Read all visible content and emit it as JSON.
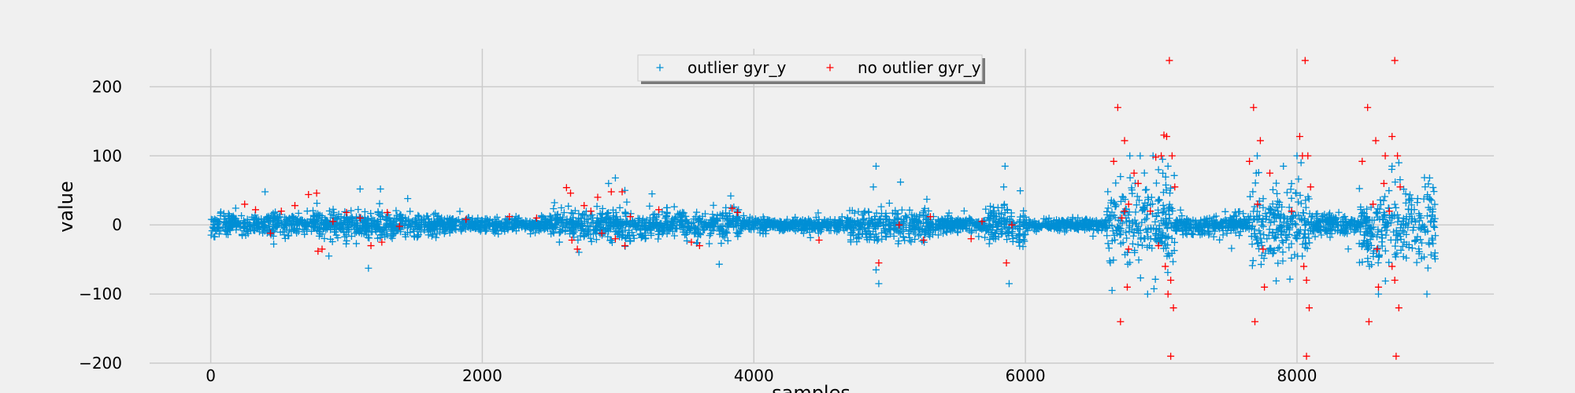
{
  "chart_data": {
    "type": "scatter",
    "marker": "+",
    "xlabel": "samples",
    "ylabel": "value",
    "xlim": [
      -450,
      9450
    ],
    "ylim": [
      -200,
      255
    ],
    "x_ticks": [
      0,
      2000,
      4000,
      6000,
      8000
    ],
    "y_ticks": [
      -200,
      -100,
      0,
      100,
      200
    ],
    "grid": true,
    "legend_position": "top-center",
    "legend_ncol": 2,
    "colors": {
      "background": "#f0f0f0",
      "grid": "#cbcbcb",
      "outlier": "#008fd5",
      "no_outlier": "#ff0000"
    },
    "series": [
      {
        "name": "outlier gyr_y",
        "color": "#008fd5",
        "marker": "+",
        "x_range": [
          0,
          9020
        ],
        "typical_spread": [
          -20,
          20
        ],
        "segments": [
          {
            "x": [
              0,
              1700
            ],
            "amp": 18
          },
          {
            "x": [
              1700,
              2500
            ],
            "amp": 12
          },
          {
            "x": [
              2500,
              3900
            ],
            "amp": 22
          },
          {
            "x": [
              3900,
              4700
            ],
            "amp": 10
          },
          {
            "x": [
              4700,
              5300
            ],
            "amp": 25
          },
          {
            "x": [
              5300,
              5700
            ],
            "amp": 12
          },
          {
            "x": [
              5700,
              6000
            ],
            "amp": 30
          },
          {
            "x": [
              6000,
              6600
            ],
            "amp": 8
          },
          {
            "x": [
              6600,
              7100
            ],
            "amp": 60
          },
          {
            "x": [
              7100,
              7650
            ],
            "amp": 15
          },
          {
            "x": [
              7650,
              8100
            ],
            "amp": 60
          },
          {
            "x": [
              8100,
              8450
            ],
            "amp": 15
          },
          {
            "x": [
              8450,
              9020
            ],
            "amp": 60
          }
        ],
        "peaks": [
          [
            4900,
            85
          ],
          [
            4880,
            55
          ],
          [
            4920,
            -85
          ],
          [
            4900,
            -65
          ],
          [
            5080,
            62
          ],
          [
            5850,
            85
          ],
          [
            5880,
            -85
          ],
          [
            5840,
            55
          ],
          [
            6700,
            70
          ],
          [
            6900,
            -100
          ],
          [
            6980,
            80
          ],
          [
            7010,
            95
          ],
          [
            7050,
            85
          ],
          [
            7700,
            75
          ],
          [
            7900,
            85
          ],
          [
            8000,
            100
          ],
          [
            8030,
            90
          ],
          [
            8700,
            85
          ],
          [
            8750,
            90
          ],
          [
            8600,
            -100
          ],
          [
            2930,
            60
          ],
          [
            2980,
            68
          ],
          [
            3050,
            50
          ],
          [
            3250,
            45
          ],
          [
            3830,
            42
          ],
          [
            400,
            48
          ],
          [
            1100,
            52
          ],
          [
            1250,
            52
          ],
          [
            870,
            -45
          ]
        ]
      },
      {
        "name": "no outlier gyr_y",
        "color": "#ff0000",
        "marker": "+",
        "points": [
          [
            250,
            30
          ],
          [
            330,
            22
          ],
          [
            440,
            -12
          ],
          [
            520,
            20
          ],
          [
            620,
            28
          ],
          [
            720,
            44
          ],
          [
            780,
            46
          ],
          [
            790,
            -38
          ],
          [
            820,
            -35
          ],
          [
            900,
            5
          ],
          [
            1000,
            18
          ],
          [
            1100,
            10
          ],
          [
            1180,
            -30
          ],
          [
            1260,
            -25
          ],
          [
            1300,
            18
          ],
          [
            1390,
            -2
          ],
          [
            1880,
            8
          ],
          [
            2200,
            12
          ],
          [
            2400,
            10
          ],
          [
            2620,
            54
          ],
          [
            2650,
            46
          ],
          [
            2660,
            -22
          ],
          [
            2700,
            -35
          ],
          [
            2750,
            28
          ],
          [
            2800,
            20
          ],
          [
            2850,
            40
          ],
          [
            2880,
            -12
          ],
          [
            2950,
            48
          ],
          [
            2980,
            -20
          ],
          [
            3030,
            48
          ],
          [
            3050,
            -30
          ],
          [
            3090,
            12
          ],
          [
            3300,
            22
          ],
          [
            3540,
            -25
          ],
          [
            3600,
            -30
          ],
          [
            3840,
            24
          ],
          [
            3880,
            18
          ],
          [
            4480,
            -22
          ],
          [
            4920,
            -55
          ],
          [
            5070,
            0
          ],
          [
            5250,
            -22
          ],
          [
            5300,
            12
          ],
          [
            5600,
            -20
          ],
          [
            5680,
            5
          ],
          [
            5860,
            -55
          ],
          [
            5900,
            0
          ],
          [
            6650,
            92
          ],
          [
            6680,
            170
          ],
          [
            6700,
            -140
          ],
          [
            6710,
            10
          ],
          [
            6730,
            122
          ],
          [
            6750,
            -90
          ],
          [
            6760,
            30
          ],
          [
            6800,
            75
          ],
          [
            6830,
            60
          ],
          [
            6920,
            20
          ],
          [
            6960,
            98
          ],
          [
            6980,
            -30
          ],
          [
            7000,
            100
          ],
          [
            7020,
            130
          ],
          [
            7040,
            128
          ],
          [
            7060,
            238
          ],
          [
            7070,
            -190
          ],
          [
            7080,
            100
          ],
          [
            7090,
            -120
          ],
          [
            7100,
            55
          ],
          [
            7030,
            -60
          ],
          [
            7050,
            -100
          ],
          [
            7070,
            -80
          ],
          [
            6730,
            20
          ],
          [
            6760,
            -35
          ],
          [
            7650,
            92
          ],
          [
            7680,
            170
          ],
          [
            7690,
            -140
          ],
          [
            7710,
            30
          ],
          [
            7730,
            122
          ],
          [
            7760,
            -90
          ],
          [
            7800,
            75
          ],
          [
            7750,
            -35
          ],
          [
            7960,
            20
          ],
          [
            8020,
            128
          ],
          [
            8040,
            100
          ],
          [
            8060,
            238
          ],
          [
            8070,
            -190
          ],
          [
            8080,
            100
          ],
          [
            8090,
            -120
          ],
          [
            8100,
            55
          ],
          [
            8050,
            -60
          ],
          [
            8070,
            -80
          ],
          [
            8480,
            92
          ],
          [
            8520,
            170
          ],
          [
            8530,
            -140
          ],
          [
            8560,
            30
          ],
          [
            8580,
            122
          ],
          [
            8600,
            -90
          ],
          [
            8650,
            100
          ],
          [
            8700,
            128
          ],
          [
            8720,
            238
          ],
          [
            8730,
            -190
          ],
          [
            8740,
            100
          ],
          [
            8750,
            -120
          ],
          [
            8760,
            55
          ],
          [
            8680,
            20
          ],
          [
            8700,
            -60
          ],
          [
            8720,
            -80
          ],
          [
            8590,
            -35
          ],
          [
            8640,
            60
          ]
        ]
      }
    ]
  }
}
